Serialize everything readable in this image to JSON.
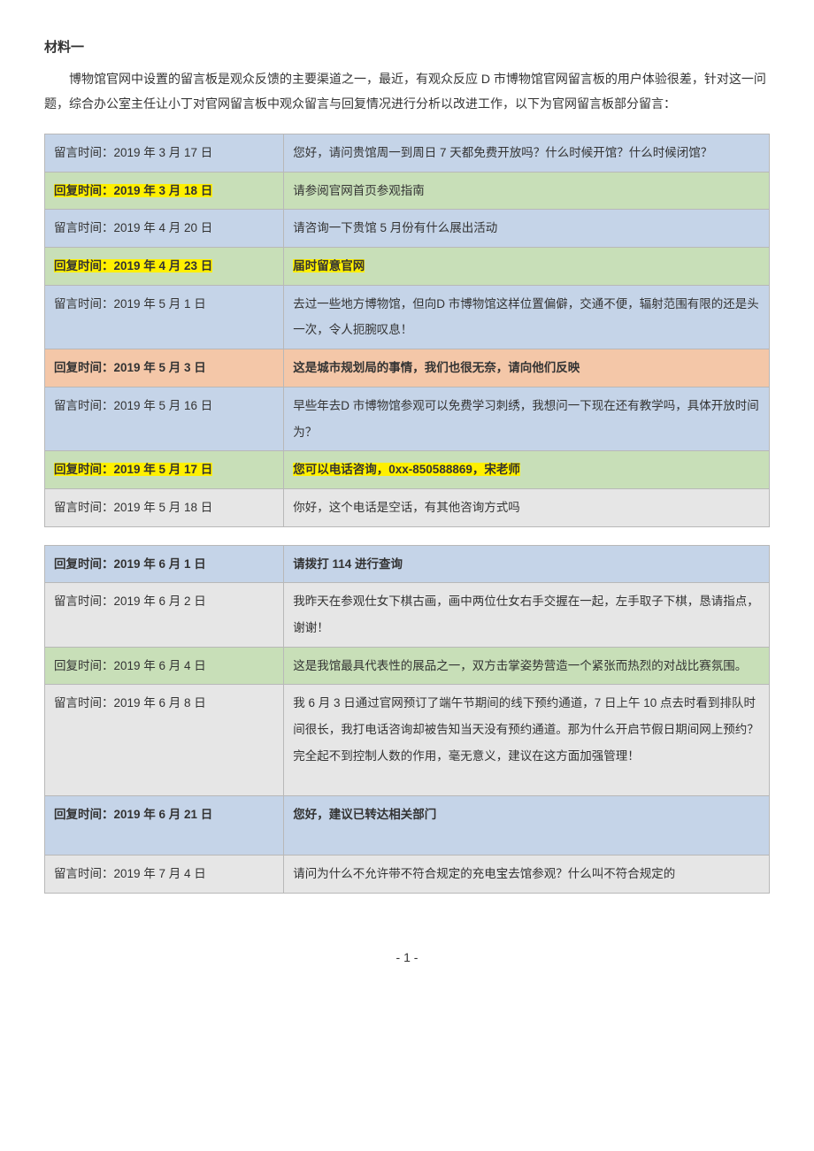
{
  "header": {
    "title": "材料一",
    "intro": "博物馆官网中设置的留言板是观众反馈的主要渠道之一，最近，有观众反应 D 市博物馆官网留言板的用户体验很差，针对这一问题，综合办公室主任让小丁对官网留言板中观众留言与回复情况进行分析以改进工作，以下为官网留言板部分留言："
  },
  "table1": {
    "rows": [
      {
        "time": "留言时间：2019 年 3 月 17 日",
        "content": "您好，请问贵馆周一到周日 7 天都免费开放吗？什么时候开馆？什么时候闭馆？",
        "style": "row-msg-blue",
        "highlight": false,
        "bold": false
      },
      {
        "time": "回复时间：2019 年 3 月 18 日",
        "content": "请参阅官网首页参观指南",
        "style": "row-reply-green",
        "highlight": "time",
        "bold": false
      },
      {
        "time": "留言时间：2019 年 4 月 20 日",
        "content": "请咨询一下贵馆 5 月份有什么展出活动",
        "style": "row-msg-blue",
        "highlight": false,
        "bold": false
      },
      {
        "time": "回复时间：2019 年 4 月 23 日",
        "content": "届时留意官网",
        "style": "row-reply-green",
        "highlight": "both",
        "bold": false
      },
      {
        "time": "留言时间：2019 年 5 月 1 日",
        "content": "去过一些地方博物馆，但向D 市博物馆这样位置偏僻，交通不便，辐射范围有限的还是头一次，令人扼腕叹息！",
        "style": "row-msg-blue",
        "highlight": false,
        "bold": false
      },
      {
        "time": "回复时间：2019 年 5 月 3 日",
        "content": "这是城市规划局的事情，我们也很无奈，请向他们反映",
        "style": "row-reply-orange",
        "highlight": false,
        "bold": true
      },
      {
        "time": "留言时间：2019 年 5 月 16 日",
        "content": "早些年去D 市博物馆参观可以免费学习刺绣，我想问一下现在还有教学吗，具体开放时间为？",
        "style": "row-msg-blue",
        "highlight": false,
        "bold": false
      },
      {
        "time": "回复时间：2019 年 5 月 17 日",
        "content": "您可以电话咨询，0xx-850588869，宋老师",
        "style": "row-reply-green",
        "highlight": "both",
        "bold": true
      },
      {
        "time": "留言时间：2019 年 5 月 18 日",
        "content": "你好，这个电话是空话，有其他咨询方式吗",
        "style": "row-msg-gray",
        "highlight": false,
        "bold": false
      }
    ]
  },
  "table2": {
    "rows": [
      {
        "time": "回复时间：2019 年 6 月 1 日",
        "content": "请拨打 114 进行查询",
        "style": "row-msg-blue",
        "highlight": false,
        "bold": true
      },
      {
        "time": "留言时间：2019 年 6 月 2 日",
        "content": "我昨天在参观仕女下棋古画，画中两位仕女右手交握在一起，左手取子下棋，恳请指点，谢谢！",
        "style": "row-msg-gray",
        "highlight": false,
        "bold": false
      },
      {
        "time": "回复时间：2019 年 6 月 4 日",
        "content": "这是我馆最具代表性的展品之一，双方击掌姿势营造一个紧张而热烈的对战比赛氛围。",
        "style": "row-reply-green",
        "highlight": false,
        "bold": false
      },
      {
        "time": "留言时间：2019 年 6 月 8 日",
        "content": "我 6 月 3 日通过官网预订了端午节期间的线下预约通道，7 日上午 10 点去时看到排队时间很长，我打电话咨询却被告知当天没有预约通道。那为什么开启节假日期间网上预约？完全起不到控制人数的作用，毫无意义，建议在这方面加强管理！",
        "style": "row-msg-gray",
        "highlight": false,
        "bold": false
      },
      {
        "time": "回复时间：2019 年 6 月 21 日",
        "content": "您好，建议已转达相关部门",
        "style": "row-msg-blue",
        "highlight": false,
        "bold": true
      },
      {
        "time": "留言时间：2019 年 7 月 4 日",
        "content": "请问为什么不允许带不符合规定的充电宝去馆参观？什么叫不符合规定的",
        "style": "row-msg-gray",
        "highlight": false,
        "bold": false
      }
    ]
  },
  "footer": {
    "pageNum": "- 1 -"
  }
}
